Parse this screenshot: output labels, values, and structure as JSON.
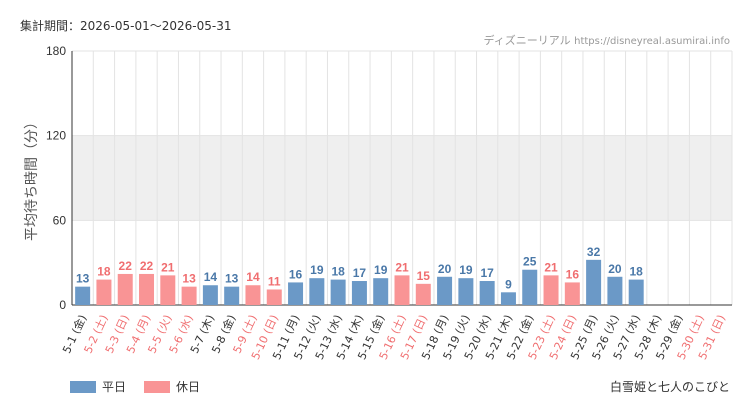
{
  "header": {
    "period_label": "集計期間：2026-05-01～2026-05-31",
    "source_name": "ディズニーリアル",
    "source_url": "https://disneyreal.asumirai.info"
  },
  "footer": {
    "attraction_name": "白雪姫と七人のこびと"
  },
  "colors": {
    "weekday": "#6b99c7",
    "holiday": "#f99495",
    "weekday_text": "#4a78a8",
    "holiday_text": "#f06e70",
    "band": "#efefef",
    "grid": "#e3e3e3",
    "axis": "#333333"
  },
  "chart_data": {
    "type": "bar",
    "title": "",
    "xlabel": "",
    "ylabel": "平均待ち時間（分）",
    "ylim": [
      0,
      180
    ],
    "yticks": [
      0,
      60,
      120,
      180
    ],
    "band": [
      60,
      120
    ],
    "grid": true,
    "legend_position": "bottom-left",
    "legend": [
      {
        "name": "平日",
        "key": "weekday"
      },
      {
        "name": "休日",
        "key": "holiday"
      }
    ],
    "categories": [
      "5-1 (金)",
      "5-2 (土)",
      "5-3 (日)",
      "5-4 (月)",
      "5-5 (火)",
      "5-6 (水)",
      "5-7 (木)",
      "5-8 (金)",
      "5-9 (土)",
      "5-10 (日)",
      "5-11 (月)",
      "5-12 (火)",
      "5-13 (水)",
      "5-14 (木)",
      "5-15 (金)",
      "5-16 (土)",
      "5-17 (日)",
      "5-18 (月)",
      "5-19 (火)",
      "5-20 (水)",
      "5-21 (木)",
      "5-22 (金)",
      "5-23 (土)",
      "5-24 (日)",
      "5-25 (月)",
      "5-26 (火)",
      "5-27 (水)",
      "5-28 (木)",
      "5-29 (金)",
      "5-30 (土)",
      "5-31 (日)"
    ],
    "values": [
      13,
      18,
      22,
      22,
      21,
      13,
      14,
      13,
      14,
      11,
      16,
      19,
      18,
      17,
      19,
      21,
      15,
      20,
      19,
      17,
      9,
      25,
      21,
      16,
      32,
      20,
      18,
      null,
      null,
      null,
      null
    ],
    "day_type": [
      "weekday",
      "holiday",
      "holiday",
      "holiday",
      "holiday",
      "holiday",
      "weekday",
      "weekday",
      "holiday",
      "holiday",
      "weekday",
      "weekday",
      "weekday",
      "weekday",
      "weekday",
      "holiday",
      "holiday",
      "weekday",
      "weekday",
      "weekday",
      "weekday",
      "weekday",
      "holiday",
      "holiday",
      "weekday",
      "weekday",
      "weekday",
      "weekday",
      "weekday",
      "holiday",
      "holiday"
    ]
  }
}
